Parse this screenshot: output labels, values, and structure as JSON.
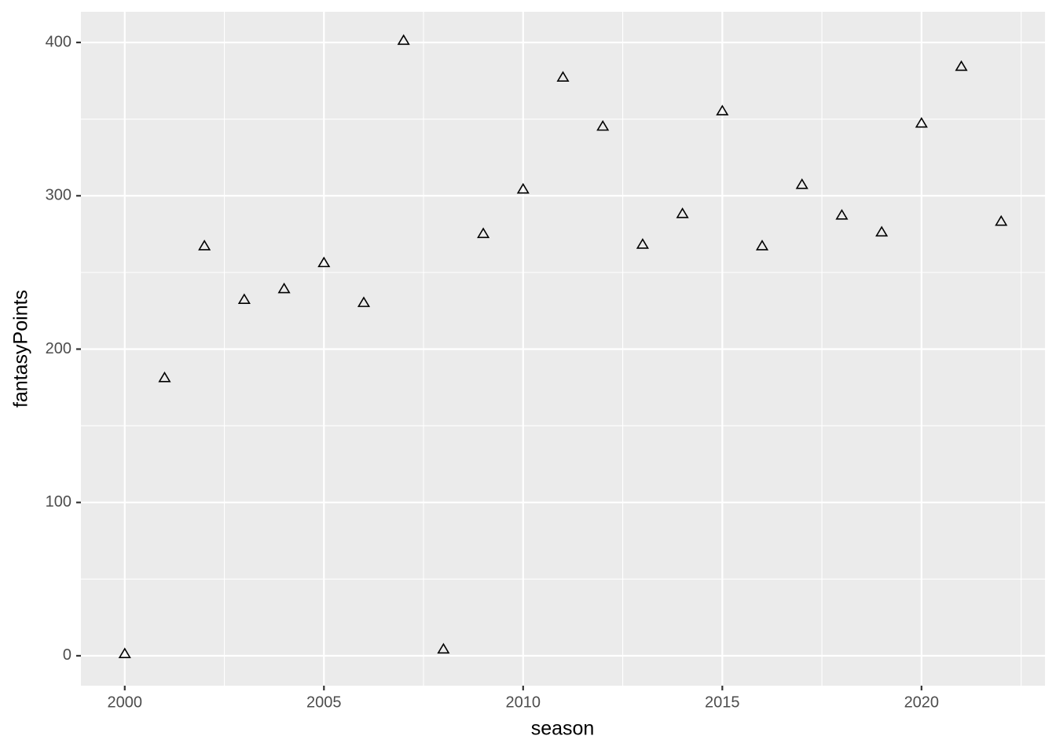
{
  "chart_data": {
    "type": "scatter",
    "x_label": "season",
    "y_label": "fantasyPoints",
    "x": [
      2000,
      2001,
      2002,
      2003,
      2004,
      2005,
      2006,
      2007,
      2008,
      2009,
      2010,
      2011,
      2012,
      2013,
      2014,
      2015,
      2016,
      2017,
      2018,
      2019,
      2020,
      2021,
      2022
    ],
    "values": [
      1,
      181,
      267,
      232,
      239,
      256,
      230,
      401,
      4,
      275,
      304,
      377,
      345,
      268,
      288,
      355,
      267,
      307,
      287,
      276,
      347,
      384,
      283
    ],
    "color": "#000000",
    "xlim": [
      1998.9,
      2023.1
    ],
    "xticks": [
      2000,
      2005,
      2010,
      2015,
      2020
    ],
    "ylim": [
      -19.5,
      420
    ],
    "yticks": [
      0,
      100,
      200,
      300,
      400
    ],
    "grid": true
  }
}
